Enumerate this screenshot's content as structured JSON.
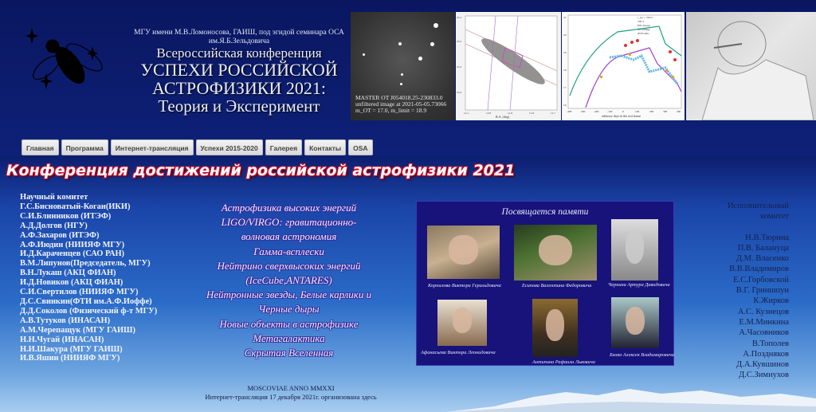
{
  "header": {
    "subtitle": "МГУ имени М.В.Ломоносова, ГАИШ, под эгидой семинара ОСА им.Я.Б.Зельдовича",
    "title_lines": [
      "Всероссийская конференция",
      "УСПЕХИ РОССИЙСКОЙ",
      "АСТРОФИЗИКИ 2021:",
      "Теория и Эксперимент"
    ]
  },
  "nav": [
    "Главная",
    "Программа",
    "Интернет-трансляция",
    "Успехи 2015-2020",
    "Галерея",
    "Контакты",
    "OSA"
  ],
  "banner": {
    "master_caption": [
      "MASTER  OT J054018.25-230833.0",
      "unfiltered image at 2021-05-05.73066",
      "m_OT = 17.0, m_limit = 18.9"
    ],
    "chart2_xlabel": "R.A. (deg)",
    "chart2_xticks": [
      "12.1",
      "12.0",
      "11.9",
      "11.8",
      "11.7"
    ],
    "chart2_yticks": [
      "25.1",
      "25.2",
      "25.3",
      "25.4"
    ],
    "chart3_xlabel": "arbitrary days in the rest frame",
    "chart3_xticks": [
      "-400",
      "-300",
      "-200",
      "-100",
      "0",
      "100",
      "200",
      "300",
      "400"
    ],
    "chart3_yticks": [
      "21",
      "20",
      "19",
      "18",
      "17",
      "16"
    ],
    "chart3_legend": [
      "t_exc = 500 d",
      "700 d",
      "HSC16aayt",
      "SN 2006gy",
      "iPTF14hls"
    ]
  },
  "conference_title": "Конференция достижений российской астрофизики 2021",
  "science_committee": {
    "heading": "Научный комитет",
    "members": [
      "Г.С.Бисноватый-Коган(ИКИ)",
      "С.И.Блинников (ИТЭФ)",
      "А.Д.Долгов (НГУ)",
      "А.Ф.Захаров (ИТЭФ)",
      "А.Ф.Июдин (НИИЯФ МГУ)",
      "И.Д.Караченцев (САО РАН)",
      "В.М.Липунов(Председатель, МГУ)",
      "В.Н.Лукаш (АКЦ ФИАН)",
      "И.Д.Новиков (АКЦ ФИАН)",
      "С.И.Свертилов (НИИЯФ МГУ)",
      "Д.С.Свинкин(ФТИ им.А.Ф.Иоффе)",
      "Д.Д.Соколов (Физический ф-т МГУ)",
      "А.В.Тутуков (ИНАСАН)",
      "А.М.Черепащук (МГУ ГАИШ)",
      "Н.Н.Чугай (ИНАСАН)",
      "Н.И.Шакура (МГУ ГАИШ)",
      "И.В.Яшин (НИИЯФ МГУ)"
    ]
  },
  "topics": [
    "Астрофизика высоких энергий",
    "LIGO/VIRGO: гравитационно-",
    "волновая астрономия",
    "Гамма-всплески",
    "Нейтрино сверхвысоких энергий",
    "(IceCube,ANTARES)",
    "Нейтронные звезды, Белые карлики и",
    "Черные дыры",
    "Новые объекты в астрофизике",
    "Метагалактика",
    "Скрытая Вселенная"
  ],
  "memorial": {
    "heading": "Посвящается  памяти",
    "people": [
      "Корнилова Виктора Геральдовича",
      "Есипова Валентина Федоровича",
      "Чернина Артура Давидовича",
      "Афанасьева Виктора Леонидовича",
      "Антипина Рафаила Львовича",
      "Бялко Алексея Владимировича"
    ]
  },
  "exec_committee": {
    "heading_lines": [
      "Исполнительный",
      "комитет"
    ],
    "members": [
      "Н.В.Тюрина",
      "П.В. Балануца",
      "Д.М. Власенко",
      "В.В.Владимиров",
      "Е.С.Горбовской",
      "В.Г. Гриншпун",
      "К.Жирков",
      "А.С. Кузнецов",
      "Е.М.Минкина",
      "А.Часовников",
      "В.Тополев",
      "А.Поздняков",
      "Д.А.Кувшинов",
      "Д.С.Зимнухов"
    ]
  },
  "footer": {
    "motto": "MOSCOVIAE ANNO MMXXI",
    "broadcast": "Интернет-трансляция 17 декабря 2021г. организована здесь"
  },
  "colors": {
    "header_bg": "#0c1a68",
    "title_outline": "#c8102e",
    "memorial_bg": "#17137a"
  }
}
